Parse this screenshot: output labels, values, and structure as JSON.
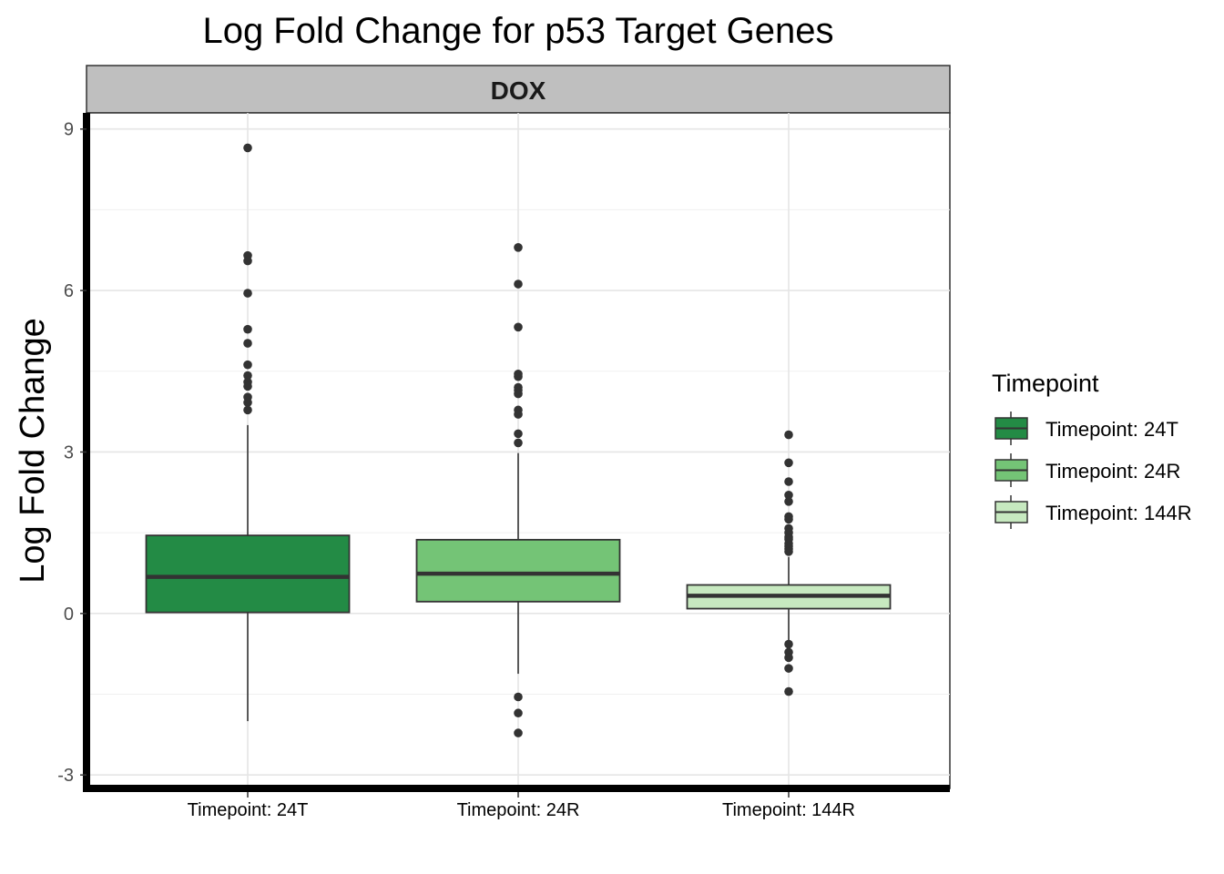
{
  "chart_data": {
    "type": "boxplot",
    "title": "Log Fold Change for p53 Target Genes",
    "facet_label": "DOX",
    "xlabel": "",
    "ylabel": "Log Fold Change",
    "ylim": [
      -3,
      9
    ],
    "yticks": [
      -3,
      0,
      3,
      6,
      9
    ],
    "grid": true,
    "legend": {
      "title": "Timepoint",
      "position": "right",
      "entries": [
        "Timepoint: 24T",
        "Timepoint: 24R",
        "Timepoint: 144R"
      ]
    },
    "categories": [
      "Timepoint: 24T",
      "Timepoint: 24R",
      "Timepoint: 144R"
    ],
    "colors": [
      "#238b45",
      "#74c476",
      "#c7e9c0"
    ],
    "boxes": [
      {
        "category": "Timepoint: 24T",
        "lower_whisker": -2.0,
        "q1": 0.02,
        "median": 0.68,
        "q3": 1.45,
        "upper_whisker": 3.5,
        "outliers": [
          8.65,
          6.65,
          6.55,
          5.95,
          5.28,
          5.02,
          4.62,
          4.42,
          4.3,
          4.22,
          4.02,
          3.92,
          3.78
        ]
      },
      {
        "category": "Timepoint: 24R",
        "lower_whisker": -1.12,
        "q1": 0.22,
        "median": 0.74,
        "q3": 1.37,
        "upper_whisker": 2.98,
        "outliers": [
          6.8,
          6.12,
          5.32,
          4.45,
          4.4,
          4.2,
          4.15,
          4.08,
          3.78,
          3.7,
          3.34,
          3.17,
          -1.55,
          -1.85,
          -2.22
        ]
      },
      {
        "category": "Timepoint: 144R",
        "lower_whisker": -0.52,
        "q1": 0.09,
        "median": 0.33,
        "q3": 0.53,
        "upper_whisker": 1.05,
        "outliers": [
          3.32,
          2.8,
          2.45,
          2.2,
          2.08,
          1.8,
          1.75,
          1.58,
          1.5,
          1.42,
          1.38,
          1.3,
          1.25,
          1.2,
          1.15,
          -0.57,
          -0.72,
          -0.82,
          -1.02,
          -1.45
        ]
      }
    ]
  }
}
